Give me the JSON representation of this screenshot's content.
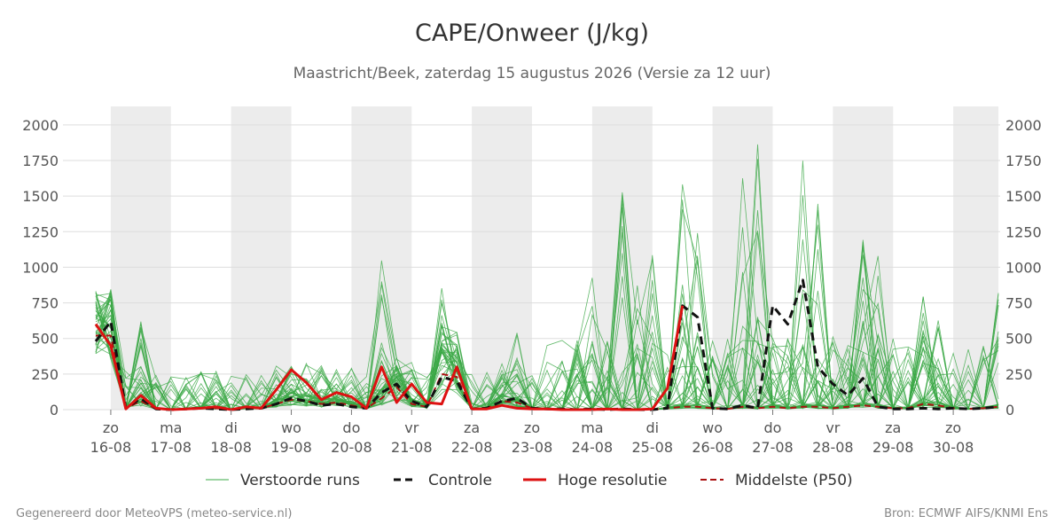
{
  "title": "CAPE/Onweer (J/kg)",
  "subtitle": "Maastricht/Beek, zaterdag 15 augustus 2026 (Versie za 12 uur)",
  "footer": {
    "left": "Gegenereerd door MeteoVPS (meteo-service.nl)",
    "right": "Bron: ECMWF AIFS/KNMI Ens"
  },
  "colors": {
    "perturbed": "#3aa845",
    "control": "#111111",
    "hires": "#dd1111",
    "median": "#aa1111",
    "weekend_band": "#ececec",
    "grid": "#dddddd",
    "axis_text": "#555555"
  },
  "chart_data": {
    "type": "line",
    "ylim": [
      0,
      2130
    ],
    "yticks": [
      0,
      250,
      500,
      750,
      1000,
      1250,
      1500,
      1750,
      2000
    ],
    "x_start_day": 15.5,
    "x_end_day": 30.75,
    "x_ticks": [
      {
        "day": 16,
        "weekday": "zo",
        "date": "16-08"
      },
      {
        "day": 17,
        "weekday": "ma",
        "date": "17-08"
      },
      {
        "day": 18,
        "weekday": "di",
        "date": "18-08"
      },
      {
        "day": 19,
        "weekday": "wo",
        "date": "19-08"
      },
      {
        "day": 20,
        "weekday": "do",
        "date": "20-08"
      },
      {
        "day": 21,
        "weekday": "vr",
        "date": "21-08"
      },
      {
        "day": 22,
        "weekday": "za",
        "date": "22-08"
      },
      {
        "day": 23,
        "weekday": "zo",
        "date": "23-08"
      },
      {
        "day": 24,
        "weekday": "ma",
        "date": "24-08"
      },
      {
        "day": 25,
        "weekday": "di",
        "date": "25-08"
      },
      {
        "day": 26,
        "weekday": "wo",
        "date": "26-08"
      },
      {
        "day": 27,
        "weekday": "do",
        "date": "27-08"
      },
      {
        "day": 28,
        "weekday": "vr",
        "date": "28-08"
      },
      {
        "day": 29,
        "weekday": "za",
        "date": "29-08"
      },
      {
        "day": 30,
        "weekday": "zo",
        "date": "30-08"
      }
    ],
    "shaded_days": [
      [
        16.0,
        17.0
      ],
      [
        18.0,
        19.0
      ],
      [
        20.0,
        21.0
      ],
      [
        22.0,
        23.0
      ],
      [
        24.0,
        25.0
      ],
      [
        26.0,
        27.0
      ],
      [
        28.0,
        29.0
      ],
      [
        30.0,
        30.75
      ]
    ],
    "legend": [
      {
        "key": "perturbed",
        "label": "Verstoorde runs",
        "style": "thin"
      },
      {
        "key": "control",
        "label": "Controle",
        "style": "dashed"
      },
      {
        "key": "hires",
        "label": "Hoge resolutie",
        "style": "solid"
      },
      {
        "key": "median",
        "label": "Middelste (P50)",
        "style": "dashed"
      }
    ],
    "series": [
      {
        "name": "Controle",
        "key": "control",
        "points": [
          [
            15.75,
            480
          ],
          [
            16.0,
            620
          ],
          [
            16.25,
            10
          ],
          [
            16.5,
            80
          ],
          [
            16.75,
            5
          ],
          [
            17.0,
            0
          ],
          [
            17.25,
            5
          ],
          [
            17.5,
            10
          ],
          [
            17.75,
            5
          ],
          [
            18.0,
            0
          ],
          [
            18.25,
            5
          ],
          [
            18.5,
            10
          ],
          [
            18.75,
            40
          ],
          [
            19.0,
            80
          ],
          [
            19.25,
            60
          ],
          [
            19.5,
            30
          ],
          [
            19.75,
            40
          ],
          [
            20.0,
            20
          ],
          [
            20.25,
            10
          ],
          [
            20.5,
            120
          ],
          [
            20.75,
            180
          ],
          [
            21.0,
            60
          ],
          [
            21.25,
            20
          ],
          [
            21.5,
            230
          ],
          [
            21.75,
            200
          ],
          [
            22.0,
            5
          ],
          [
            22.25,
            10
          ],
          [
            22.5,
            60
          ],
          [
            22.75,
            80
          ],
          [
            23.0,
            10
          ],
          [
            23.25,
            5
          ],
          [
            23.5,
            5
          ],
          [
            23.75,
            0
          ],
          [
            24.0,
            5
          ],
          [
            24.25,
            0
          ],
          [
            24.5,
            5
          ],
          [
            24.75,
            0
          ],
          [
            25.0,
            0
          ],
          [
            25.25,
            10
          ],
          [
            25.5,
            730
          ],
          [
            25.75,
            650
          ],
          [
            26.0,
            10
          ],
          [
            26.25,
            5
          ],
          [
            26.5,
            30
          ],
          [
            26.75,
            10
          ],
          [
            27.0,
            730
          ],
          [
            27.25,
            600
          ],
          [
            27.5,
            910
          ],
          [
            27.75,
            300
          ],
          [
            28.0,
            180
          ],
          [
            28.25,
            100
          ],
          [
            28.5,
            220
          ],
          [
            28.75,
            20
          ],
          [
            29.0,
            5
          ],
          [
            29.25,
            5
          ],
          [
            29.5,
            10
          ],
          [
            29.75,
            5
          ],
          [
            30.0,
            10
          ],
          [
            30.25,
            5
          ],
          [
            30.5,
            10
          ],
          [
            30.75,
            20
          ]
        ]
      },
      {
        "name": "Hoge resolutie",
        "key": "hires",
        "points": [
          [
            15.75,
            600
          ],
          [
            16.0,
            450
          ],
          [
            16.25,
            5
          ],
          [
            16.5,
            100
          ],
          [
            16.75,
            10
          ],
          [
            17.0,
            0
          ],
          [
            17.25,
            5
          ],
          [
            17.5,
            10
          ],
          [
            17.75,
            20
          ],
          [
            18.0,
            0
          ],
          [
            18.25,
            20
          ],
          [
            18.5,
            10
          ],
          [
            18.75,
            140
          ],
          [
            19.0,
            280
          ],
          [
            19.25,
            190
          ],
          [
            19.5,
            70
          ],
          [
            19.75,
            120
          ],
          [
            20.0,
            90
          ],
          [
            20.25,
            10
          ],
          [
            20.5,
            300
          ],
          [
            20.75,
            50
          ],
          [
            21.0,
            180
          ],
          [
            21.25,
            50
          ],
          [
            21.5,
            40
          ],
          [
            21.75,
            300
          ],
          [
            22.0,
            5
          ],
          [
            22.25,
            5
          ],
          [
            22.5,
            30
          ],
          [
            22.75,
            10
          ],
          [
            23.0,
            5
          ],
          [
            23.25,
            5
          ],
          [
            23.5,
            0
          ],
          [
            23.75,
            0
          ],
          [
            24.0,
            0
          ],
          [
            24.25,
            5
          ],
          [
            24.5,
            0
          ],
          [
            24.75,
            0
          ],
          [
            25.0,
            5
          ],
          [
            25.25,
            150
          ],
          [
            25.5,
            730
          ]
        ]
      },
      {
        "name": "Middelste (P50)",
        "key": "median",
        "points": [
          [
            15.75,
            520
          ],
          [
            16.0,
            520
          ],
          [
            16.25,
            10
          ],
          [
            16.5,
            60
          ],
          [
            16.75,
            5
          ],
          [
            17.0,
            0
          ],
          [
            17.25,
            5
          ],
          [
            17.5,
            10
          ],
          [
            17.75,
            10
          ],
          [
            18.0,
            0
          ],
          [
            18.25,
            10
          ],
          [
            18.5,
            10
          ],
          [
            18.75,
            40
          ],
          [
            19.0,
            70
          ],
          [
            19.25,
            60
          ],
          [
            19.5,
            40
          ],
          [
            19.75,
            50
          ],
          [
            20.0,
            30
          ],
          [
            20.25,
            10
          ],
          [
            20.5,
            80
          ],
          [
            20.75,
            160
          ],
          [
            21.0,
            40
          ],
          [
            21.25,
            20
          ],
          [
            21.5,
            250
          ],
          [
            21.75,
            230
          ],
          [
            22.0,
            5
          ],
          [
            22.25,
            10
          ],
          [
            22.5,
            60
          ],
          [
            22.75,
            50
          ],
          [
            23.0,
            10
          ],
          [
            23.25,
            5
          ],
          [
            23.5,
            5
          ],
          [
            23.75,
            0
          ],
          [
            24.0,
            5
          ],
          [
            24.25,
            0
          ],
          [
            24.5,
            5
          ],
          [
            24.75,
            0
          ],
          [
            25.0,
            0
          ],
          [
            25.25,
            10
          ],
          [
            25.5,
            20
          ],
          [
            25.75,
            20
          ],
          [
            26.0,
            10
          ],
          [
            26.25,
            5
          ],
          [
            26.5,
            20
          ],
          [
            26.75,
            10
          ],
          [
            27.0,
            20
          ],
          [
            27.25,
            10
          ],
          [
            27.5,
            20
          ],
          [
            27.75,
            20
          ],
          [
            28.0,
            10
          ],
          [
            28.25,
            20
          ],
          [
            28.5,
            30
          ],
          [
            28.75,
            20
          ],
          [
            29.0,
            10
          ],
          [
            29.25,
            10
          ],
          [
            29.5,
            40
          ],
          [
            29.75,
            30
          ],
          [
            30.0,
            10
          ],
          [
            30.25,
            5
          ],
          [
            30.5,
            10
          ],
          [
            30.75,
            20
          ]
        ]
      }
    ]
  }
}
